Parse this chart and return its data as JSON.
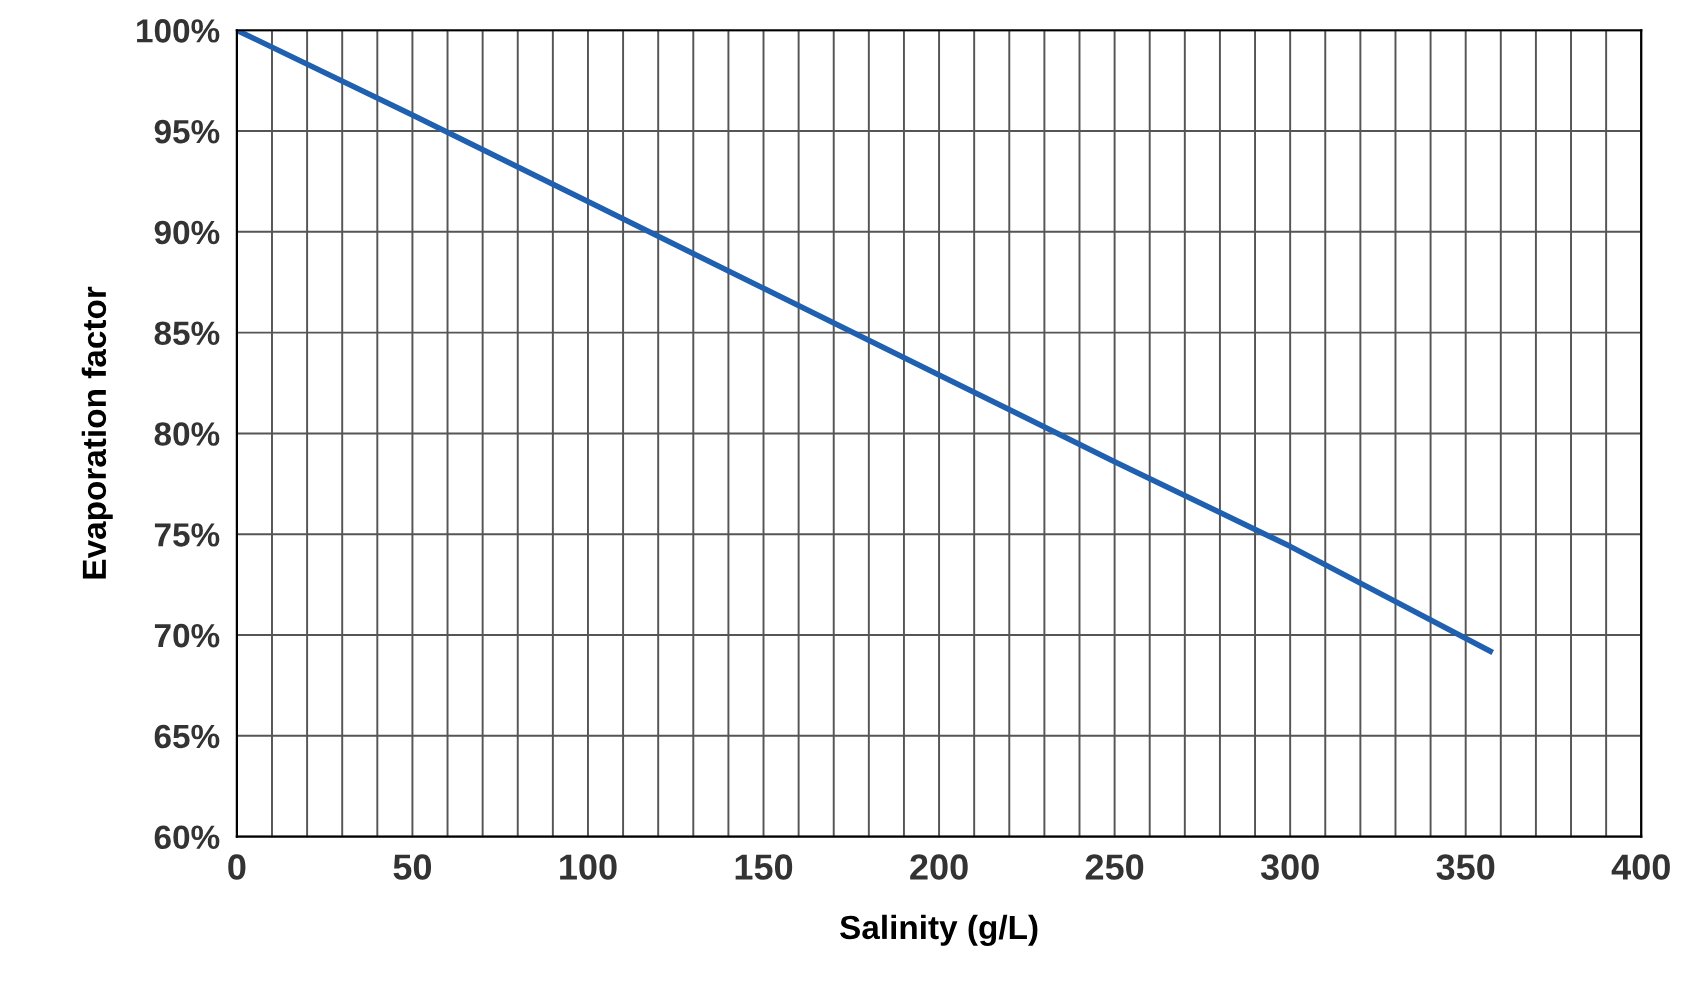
{
  "chart_data": {
    "type": "line",
    "xlabel": "Salinity (g/L)",
    "ylabel": "Evaporation factor",
    "x": [
      0,
      50,
      100,
      150,
      200,
      250,
      300,
      357
    ],
    "series": [
      {
        "color": "#2060b0",
        "values": [
          100,
          95.8,
          91.5,
          87.2,
          82.9,
          78.6,
          74.4,
          69.2
        ]
      }
    ],
    "xlim": [
      0,
      400
    ],
    "xticks": [
      0,
      {
        "value": 10,
        "label": null
      },
      {
        "value": 20,
        "label": null
      },
      {
        "value": 30,
        "label": null
      },
      {
        "value": 40,
        "label": null
      },
      50,
      {
        "value": 60,
        "label": null
      },
      {
        "value": 70,
        "label": null
      },
      {
        "value": 80,
        "label": null
      },
      {
        "value": 90,
        "label": null
      },
      100,
      {
        "value": 110,
        "label": null
      },
      {
        "value": 120,
        "label": null
      },
      {
        "value": 130,
        "label": null
      },
      {
        "value": 140,
        "label": null
      },
      150,
      {
        "value": 160,
        "label": null
      },
      {
        "value": 170,
        "label": null
      },
      {
        "value": 180,
        "label": null
      },
      {
        "value": 190,
        "label": null
      },
      200,
      {
        "value": 210,
        "label": null
      },
      {
        "value": 220,
        "label": null
      },
      {
        "value": 230,
        "label": null
      },
      {
        "value": 240,
        "label": null
      },
      250,
      {
        "value": 260,
        "label": null
      },
      {
        "value": 270,
        "label": null
      },
      {
        "value": 280,
        "label": null
      },
      {
        "value": 290,
        "label": null
      },
      300,
      {
        "value": 310,
        "label": null
      },
      {
        "value": 320,
        "label": null
      },
      {
        "value": 330,
        "label": null
      },
      {
        "value": 340,
        "label": null
      },
      350,
      {
        "value": 360,
        "label": null
      },
      {
        "value": 370,
        "label": null
      },
      {
        "value": 380,
        "label": null
      },
      {
        "value": 390,
        "label": null
      },
      400
    ],
    "ylim": [
      60,
      100
    ],
    "yticks": [
      {
        "value": 60,
        "label": "60%"
      },
      {
        "value": 65,
        "label": "65%"
      },
      {
        "value": 70,
        "label": "70%"
      },
      {
        "value": 75,
        "label": "75%"
      },
      {
        "value": 80,
        "label": "80%"
      },
      {
        "value": 85,
        "label": "85%"
      },
      {
        "value": 90,
        "label": "90%"
      },
      {
        "value": 95,
        "label": "95%"
      },
      {
        "value": 100,
        "label": "100%"
      }
    ],
    "grid": true,
    "marker": "none",
    "line_style": "solid",
    "legend": false
  }
}
